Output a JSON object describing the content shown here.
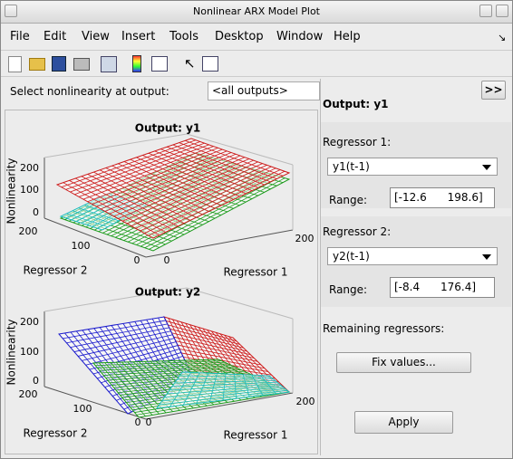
{
  "window": {
    "title": "Nonlinear ARX Model Plot"
  },
  "menu": [
    "File",
    "Edit",
    "View",
    "Insert",
    "Tools",
    "Desktop",
    "Window",
    "Help"
  ],
  "selector": {
    "label": "Select nonlinearity at output:",
    "value": "<all outputs>",
    "button": ">>"
  },
  "plots": [
    {
      "title": "Output: y1",
      "zlabel": "Nonlinearity",
      "zticks": [
        200,
        100,
        0
      ],
      "xlabel": "Regressor 2",
      "xticks": [
        200,
        100,
        0
      ],
      "ylabel": "Regressor 1",
      "yticks": [
        0,
        200
      ]
    },
    {
      "title": "Output: y2",
      "zlabel": "Nonlinearity",
      "zticks": [
        200,
        100,
        0
      ],
      "xlabel": "Regressor 2",
      "xticks": [
        200,
        100,
        0
      ],
      "ylabel": "Regressor 1",
      "yticks": [
        0,
        200
      ]
    }
  ],
  "panel": {
    "output": "Output: y1",
    "regressors": [
      {
        "label": "Regressor 1:",
        "value": "y1(t-1)",
        "range_label": "Range:",
        "range": "[-12.6      198.6]"
      },
      {
        "label": "Regressor 2:",
        "value": "y2(t-1)",
        "range_label": "Range:",
        "range": "[-8.4      176.4]"
      }
    ],
    "remaining": "Remaining regressors:",
    "fix": "Fix values...",
    "apply": "Apply"
  }
}
